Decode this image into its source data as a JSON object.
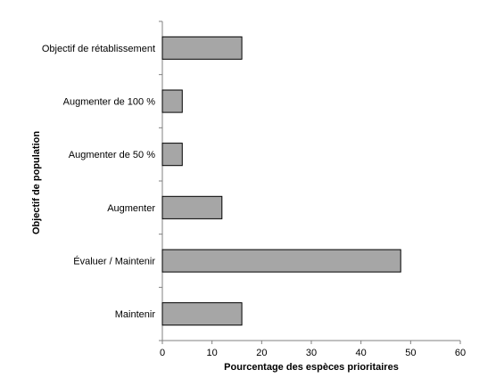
{
  "chart_data": {
    "type": "bar",
    "orientation": "horizontal",
    "categories": [
      "Objectif de rétablissement",
      "Augmenter de 100 %",
      "Augmenter de 50 %",
      "Augmenter",
      "Évaluer / Maintenir",
      "Maintenir"
    ],
    "values": [
      16,
      4,
      4,
      12,
      48,
      16
    ],
    "xlabel": "Pourcentage des espèces prioritaires",
    "ylabel": "Objectif de population",
    "xlim": [
      0,
      60
    ],
    "xticks": [
      "0",
      "10",
      "20",
      "30",
      "40",
      "50",
      "60"
    ],
    "grid": false,
    "legend": "none",
    "colors": {
      "bar_fill": "#a6a6a6",
      "bar_stroke": "#000000",
      "axis": "#808080"
    }
  }
}
